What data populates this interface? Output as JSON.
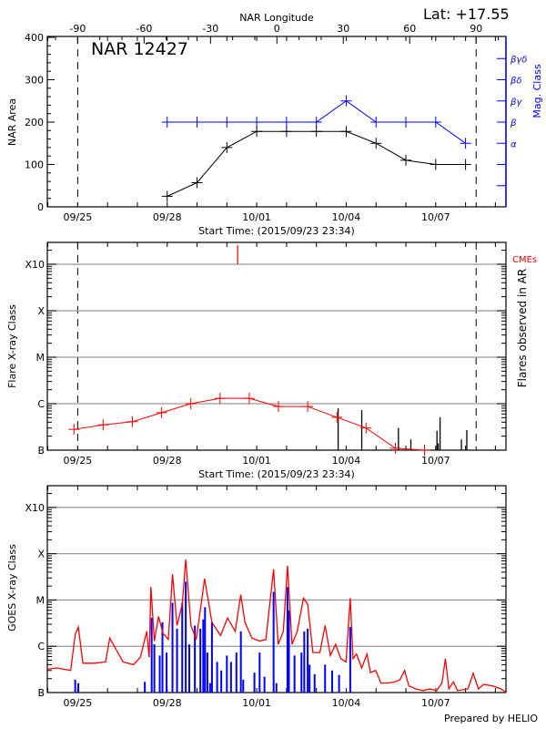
{
  "header": {
    "lat_label": "Lat: +17.55",
    "longitude_title": "NAR Longitude",
    "region_title": "NAR 12427",
    "prepared_by": "Prepared by HELIO"
  },
  "colors": {
    "area": "#000000",
    "mag_class": "#0000ff",
    "flare_line": "#ff0000",
    "cme": "#ff0000",
    "flares": "#000000",
    "goes_long": "#ff0000",
    "goes_short": "#0000ff",
    "grid": "#999999"
  },
  "chart_data": [
    {
      "type": "line",
      "panel": "nar",
      "ylabel": "NAR Area",
      "y2label": "Mag. Class",
      "xlabel": "Start Time: (2015/09/23 23:34)",
      "xlim": [
        "09/23 23:34",
        "10/09 08:30"
      ],
      "x_tick_labels": [
        "09/25",
        "09/28",
        "10/01",
        "10/04",
        "10/07"
      ],
      "ylim": [
        0,
        400
      ],
      "y_tick_labels": [
        "0",
        "100",
        "200",
        "300",
        "400"
      ],
      "top_axis": {
        "title": "NAR Longitude",
        "tick_labels": [
          "-90",
          "-60",
          "-30",
          "0",
          "30",
          "60",
          "90"
        ],
        "limb_lines": [
          "-90",
          "90"
        ]
      },
      "mag_class_ticks": [
        "",
        "",
        "α",
        "β",
        "βγ",
        "βδ",
        "βγδ"
      ],
      "series": [
        {
          "key": "area",
          "x": [
            "09/28 00:00",
            "09/29 00:00",
            "09/30 00:00",
            "10/01 00:00",
            "10/02 00:00",
            "10/03 00:00",
            "10/04 00:00",
            "10/05 00:00",
            "10/06 00:00",
            "10/07 00:00",
            "10/08 00:00"
          ],
          "values": [
            25,
            57,
            140,
            178,
            178,
            178,
            178,
            150,
            110,
            100,
            100
          ]
        },
        {
          "key": "mag_class",
          "x": [
            "09/28 00:00",
            "09/29 00:00",
            "09/30 00:00",
            "10/01 00:00",
            "10/02 00:00",
            "10/03 00:00",
            "10/04 00:00",
            "10/05 00:00",
            "10/06 00:00",
            "10/07 00:00",
            "10/08 00:00"
          ],
          "values": [
            "β",
            "β",
            "β",
            "β",
            "β",
            "β",
            "βγ",
            "β",
            "β",
            "β",
            "α"
          ]
        }
      ]
    },
    {
      "type": "line",
      "panel": "flares",
      "ylabel": "Flare X-ray Class",
      "y2label": "Flares observed in AR",
      "xlabel": "Start Time: (2015/09/23 23:34)",
      "x_tick_labels": [
        "09/25",
        "09/28",
        "10/01",
        "10/04",
        "10/07"
      ],
      "y_tick_labels": [
        "B",
        "C",
        "M",
        "X",
        "X10"
      ],
      "cme_label": "CMEs",
      "series": [
        {
          "key": "daily_max",
          "x": [
            "09/24 21:00",
            "09/25 20:30",
            "09/26 20:00",
            "09/27 19:30",
            "09/28 19:00",
            "09/29 18:30",
            "09/30 18:00",
            "10/01 17:30",
            "10/02 17:00",
            "10/03 16:30",
            "10/04 16:00",
            "10/05 15:30",
            "10/06 15:00"
          ],
          "values": [
            "B2.8",
            "B3.5",
            "B4.1",
            "B6.4",
            "C1.0",
            "C1.3",
            "C1.3",
            "B8.7",
            "B8.7",
            "B5.1",
            "B3.0",
            "B1.1",
            "B1.0"
          ]
        },
        {
          "key": "flares",
          "x": [
            "10/03 17:30",
            "10/04 12:30",
            "10/05 18:00",
            "10/06 04:00",
            "10/07 01:00",
            "10/07 02:00",
            "10/07 03:30",
            "10/07 20:40",
            "10/08 01:00"
          ],
          "values": [
            "B8.0",
            "B7.3",
            "B3.0",
            "B1.7",
            "B2.6",
            "B1.4",
            "B5.1",
            "B1.7",
            "B2.7"
          ]
        },
        {
          "key": "cmes",
          "x": [
            "09/30 08:40"
          ]
        }
      ]
    },
    {
      "type": "line",
      "panel": "goes",
      "ylabel": "GOES X-ray Class",
      "x_tick_labels": [
        "09/25",
        "09/28",
        "10/01",
        "10/04",
        "10/07"
      ],
      "y_tick_labels": [
        "B",
        "C",
        "M",
        "X",
        "X10"
      ],
      "series": [
        {
          "key": "long",
          "x": [
            "09/23 23:34",
            "09/24 07:10",
            "09/24 18:23",
            "09/24 22:00",
            "09/25 00:30",
            "09/25 04:12",
            "09/25 14:00",
            "09/25 22:26",
            "09/26 01:48",
            "09/26 12:28",
            "09/26 20:53",
            "09/27 02:28",
            "09/27 07:30",
            "09/27 09:30",
            "09/27 10:53",
            "09/27 13:41",
            "09/27 17:02",
            "09/27 20:40",
            "09/28 00:54",
            "09/28 04:16",
            "09/28 07:54",
            "09/28 12:07",
            "09/28 14:55",
            "09/28 19:07",
            "09/28 23:20",
            "09/29 04:22",
            "09/29 06:03",
            "09/29 09:08",
            "09/29 11:56",
            "09/29 18:56",
            "09/30 00:33",
            "09/30 06:42",
            "09/30 11:11",
            "09/30 14:33",
            "09/30 20:10",
            "10/01 02:20",
            "10/01 07:22",
            "10/01 13:34",
            "10/01 17:16",
            "10/01 21:25",
            "10/02 00:46",
            "10/02 04:24",
            "10/02 08:36",
            "10/02 13:38",
            "10/02 17:00",
            "10/02 21:12",
            "10/03 02:50",
            "10/03 07:02",
            "10/03 11:15",
            "10/03 15:27",
            "10/03 19:39",
            "10/03 23:52",
            "10/04 03:14",
            "10/04 05:28",
            "10/04 08:17",
            "10/04 12:29",
            "10/04 16:42",
            "10/04 19:30",
            "10/04 23:42",
            "10/05 03:55",
            "10/05 09:31",
            "10/05 15:08",
            "10/05 19:20",
            "10/05 22:58",
            "10/06 02:20",
            "10/06 07:57",
            "10/06 13:33",
            "10/06 19:10",
            "10/07 00:46",
            "10/07 04:59",
            "10/07 07:47",
            "10/07 10:35",
            "10/07 14:14",
            "10/07 17:32",
            "10/08 01:56",
            "10/08 06:09",
            "10/08 10:21",
            "10/08 14:33",
            "10/08 21:34",
            "10/09 04:35",
            "10/09 08:30"
          ],
          "values": [
            "B3.2",
            "B3.4",
            "B3.0",
            "C1.8",
            "C2.6",
            "B4.3",
            "B4.3",
            "B4.6",
            "C1.5",
            "B4.6",
            "B4.0",
            "B5.8",
            "C2.1",
            "B5.8",
            "M1.9",
            "C1.3",
            "C4.4",
            "C1.9",
            "C1.4",
            "M3.6",
            "C2.8",
            "C8.1",
            "M7.5",
            "C2.8",
            "C1.4",
            "M1.3",
            "M2.9",
            "C9.4",
            "C3.3",
            "C1.7",
            "C4.1",
            "C2.1",
            "M1.3",
            "C3.3",
            "C1.5",
            "C1.3",
            "C1.4",
            "M4.6",
            "C1.1",
            "C2.1",
            "M5.5",
            "C1.1",
            "C2.1",
            "M1.1",
            "C8.1",
            "B7.3",
            "B7.3",
            "C2.8",
            "B6.3",
            "C1.1",
            "B5.4",
            "B4.6",
            "M1.1",
            "B5.4",
            "B6.8",
            "B3.4",
            "B6.8",
            "B2.7",
            "B3.0",
            "B1.6",
            "B1.6",
            "B1.7",
            "B1.9",
            "B3.0",
            "B1.4",
            "B1.2",
            "B1.1",
            "B1.2",
            "B1.1",
            "B1.6",
            "B5.4",
            "B1.2",
            "B1.7",
            "B1.1",
            "B1.2",
            "B2.6",
            "B1.2",
            "B1.5",
            "B1.4",
            "B1.2",
            "B1.0"
          ]
        },
        {
          "key": "short",
          "x": [
            "09/24 22:00",
            "09/25 00:30",
            "09/27 06:00",
            "09/27 11:30",
            "09/27 13:40",
            "09/27 18:00",
            "09/27 20:10",
            "09/27 23:30",
            "09/28 04:15",
            "09/28 07:55",
            "09/28 12:05",
            "09/28 14:55",
            "09/28 17:45",
            "09/28 22:15",
            "09/29 02:40",
            "09/29 05:00",
            "09/29 06:25",
            "09/29 08:20",
            "09/29 10:30",
            "09/29 12:00",
            "09/29 16:10",
            "09/29 19:30",
            "09/30 00:00",
            "09/30 03:20",
            "09/30 07:40",
            "09/30 11:15",
            "09/30 13:10",
            "09/30 22:10",
            "10/01 02:20",
            "10/01 06:15",
            "10/01 13:35",
            "10/01 15:50",
            "10/02 00:45",
            "10/02 01:55",
            "10/02 06:25",
            "10/02 12:00",
            "10/02 14:15",
            "10/02 17:00",
            "10/02 18:30",
            "10/02 22:35",
            "10/03 07:00",
            "10/03 12:40",
            "10/03 18:15",
            "10/04 03:15"
          ],
          "values": [
            "B1.9",
            "B1.6",
            "B1.7",
            "C4.1",
            "C1.1",
            "B6.3",
            "C3.3",
            "B7.3",
            "C8.7",
            "C2.4",
            "C8.7",
            "M2.5",
            "C1.1",
            "C2.8",
            "C2.4",
            "C3.8",
            "C7.0",
            "B7.3",
            "B1.6",
            "C3.3",
            "B4.6",
            "B3.0",
            "B6.3",
            "B4.6",
            "B7.3",
            "C2.1",
            "B1.9",
            "B2.7",
            "B7.3",
            "B2.2",
            "M1.5",
            "B1.6",
            "M1.9",
            "C6.0",
            "B6.3",
            "B7.3",
            "C2.1",
            "C2.4",
            "B4.0",
            "B2.5",
            "B4.0",
            "B3.0",
            "B2.4",
            "C2.6"
          ]
        }
      ]
    }
  ]
}
